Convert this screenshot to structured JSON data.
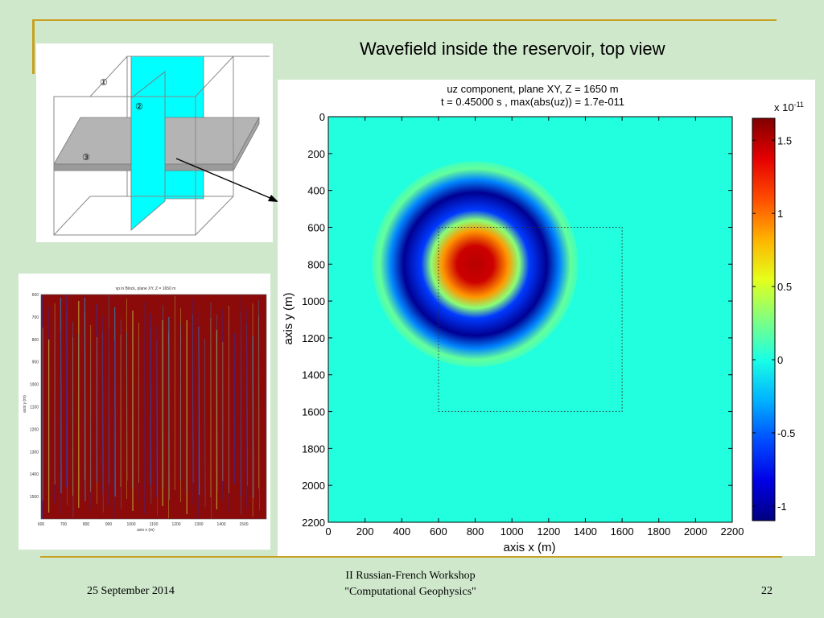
{
  "slide": {
    "title": "Wavefield inside the reservoir, top view",
    "footer_date": "25 September 2014",
    "footer_line1": "II Russian-French Workshop",
    "footer_line2": "\"Computational Geophysics\"",
    "page_number": "22",
    "accent_color": "#c8a020",
    "background_color": "#cfe8cc"
  },
  "diagram": {
    "labels": [
      "①",
      "②",
      "③"
    ],
    "plane_color": "#00ffff",
    "slab_color": "#b4b4b4"
  },
  "chart_data": [
    {
      "type": "heatmap",
      "title_line1": "uz component,  plane XY,  Z = 1650 m",
      "title_line2": "t = 0.45000 s ,   max(abs(uz)) = 1.7e-011",
      "xlabel": "axis x (m)",
      "ylabel": "axis y (m)",
      "xlim": [
        0,
        2200
      ],
      "ylim": [
        0,
        2200
      ],
      "y_reversed": true,
      "xticks": [
        0,
        200,
        400,
        600,
        800,
        1000,
        1200,
        1400,
        1600,
        1800,
        2000,
        2200
      ],
      "yticks": [
        0,
        200,
        400,
        600,
        800,
        1000,
        1200,
        1400,
        1600,
        1800,
        2000,
        2200
      ],
      "colormap": "jet",
      "colorbar": {
        "exponent_label": "x 10",
        "exponent": "-11",
        "range": [
          -1.1,
          1.65
        ],
        "ticks": [
          -1,
          -0.5,
          0,
          0.5,
          1,
          1.5
        ],
        "tick_labels": [
          "-1",
          "-0.5",
          "0",
          "0.5",
          "1",
          "1.5"
        ]
      },
      "field": {
        "center": [
          800,
          800
        ],
        "core_value": 1.5,
        "core_radius": 180,
        "trough_value": -1.05,
        "trough_radius": 390,
        "outer_value": 0.15,
        "outer_radius": 560
      },
      "dotted_box": {
        "x": [
          600,
          1600
        ],
        "y": [
          600,
          1600
        ]
      }
    },
    {
      "type": "heatmap",
      "title": "vp in Block, plane XY, Z = 1650 m",
      "xlabel": "axis x (m)",
      "ylabel": "axis y (m)",
      "xlim": [
        600,
        1600
      ],
      "ylim": [
        600,
        1600
      ],
      "xticks": [
        600,
        700,
        800,
        900,
        1000,
        1100,
        1200,
        1300,
        1400,
        1500
      ],
      "yticks": [
        600,
        700,
        800,
        900,
        1000,
        1100,
        1200,
        1300,
        1400,
        1500
      ],
      "fill_color": "#8b0a0a",
      "streak_colors": [
        "#3a2a9a",
        "#c8c040",
        "#2a8ac0"
      ]
    }
  ]
}
